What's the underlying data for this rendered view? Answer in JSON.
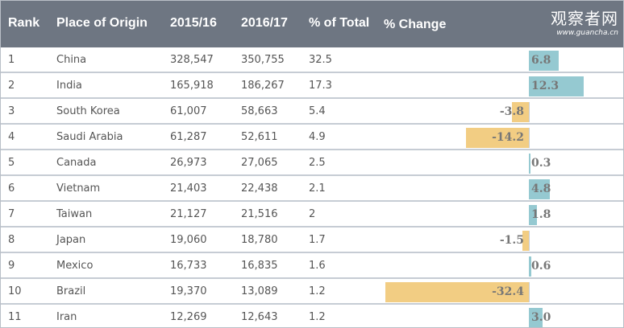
{
  "header": {
    "rank": "Rank",
    "place": "Place of Origin",
    "y2015": "2015/16",
    "y2016": "2016/17",
    "pct_total": "% of Total",
    "pct_change": "% Change"
  },
  "watermark": {
    "cn": "观察者网",
    "url": "www.guancha.cn"
  },
  "colors": {
    "header_bg": "#6e7682",
    "positive": "#95c9d1",
    "negative": "#f2cd83"
  },
  "rows": [
    {
      "rank": "1",
      "place": "China",
      "y2015": "328,547",
      "y2016": "350,755",
      "pct_total": "32.5",
      "change": 6.8,
      "change_label": "6.8"
    },
    {
      "rank": "2",
      "place": "India",
      "y2015": "165,918",
      "y2016": "186,267",
      "pct_total": "17.3",
      "change": 12.3,
      "change_label": "12.3"
    },
    {
      "rank": "3",
      "place": "South Korea",
      "y2015": "61,007",
      "y2016": "58,663",
      "pct_total": "5.4",
      "change": -3.8,
      "change_label": "-3.8"
    },
    {
      "rank": "4",
      "place": "Saudi Arabia",
      "y2015": "61,287",
      "y2016": "52,611",
      "pct_total": "4.9",
      "change": -14.2,
      "change_label": "-14.2"
    },
    {
      "rank": "5",
      "place": "Canada",
      "y2015": "26,973",
      "y2016": "27,065",
      "pct_total": "2.5",
      "change": 0.3,
      "change_label": "0.3"
    },
    {
      "rank": "6",
      "place": "Vietnam",
      "y2015": "21,403",
      "y2016": "22,438",
      "pct_total": "2.1",
      "change": 4.8,
      "change_label": "4.8"
    },
    {
      "rank": "7",
      "place": "Taiwan",
      "y2015": "21,127",
      "y2016": "21,516",
      "pct_total": "2",
      "change": 1.8,
      "change_label": "1.8"
    },
    {
      "rank": "8",
      "place": "Japan",
      "y2015": "19,060",
      "y2016": "18,780",
      "pct_total": "1.7",
      "change": -1.5,
      "change_label": "-1.5"
    },
    {
      "rank": "9",
      "place": "Mexico",
      "y2015": "16,733",
      "y2016": "16,835",
      "pct_total": "1.6",
      "change": 0.6,
      "change_label": "0.6"
    },
    {
      "rank": "10",
      "place": "Brazil",
      "y2015": "19,370",
      "y2016": "13,089",
      "pct_total": "1.2",
      "change": -32.4,
      "change_label": "-32.4"
    },
    {
      "rank": "11",
      "place": "Iran",
      "y2015": "12,269",
      "y2016": "12,643",
      "pct_total": "1.2",
      "change": 3.0,
      "change_label": "3.0"
    }
  ]
}
